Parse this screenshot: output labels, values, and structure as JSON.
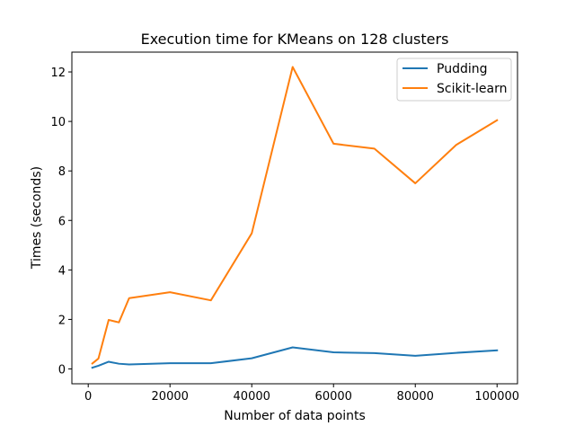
{
  "chart_data": {
    "type": "line",
    "title": "Execution time for KMeans on 128 clusters",
    "xlabel": "Number of data points",
    "ylabel": "Times (seconds)",
    "xlim": [
      -4000,
      105000
    ],
    "ylim": [
      -0.6,
      12.8
    ],
    "xticks": [
      0,
      20000,
      40000,
      60000,
      80000,
      100000
    ],
    "yticks": [
      0,
      2,
      4,
      6,
      8,
      10,
      12
    ],
    "grid": false,
    "legend_position": "top-right",
    "x": [
      1000,
      2500,
      5000,
      7500,
      10000,
      20000,
      30000,
      40000,
      50000,
      60000,
      70000,
      80000,
      90000,
      100000
    ],
    "series": [
      {
        "name": "Pudding",
        "color": "#1f77b4",
        "values": [
          0.05,
          0.13,
          0.29,
          0.21,
          0.18,
          0.23,
          0.23,
          0.43,
          0.87,
          0.67,
          0.64,
          0.53,
          0.65,
          0.75
        ]
      },
      {
        "name": "Scikit-learn",
        "color": "#ff7f0e",
        "values": [
          0.22,
          0.42,
          1.98,
          1.88,
          2.86,
          3.1,
          2.77,
          5.48,
          12.2,
          9.1,
          8.9,
          7.5,
          9.05,
          10.05
        ]
      }
    ]
  }
}
